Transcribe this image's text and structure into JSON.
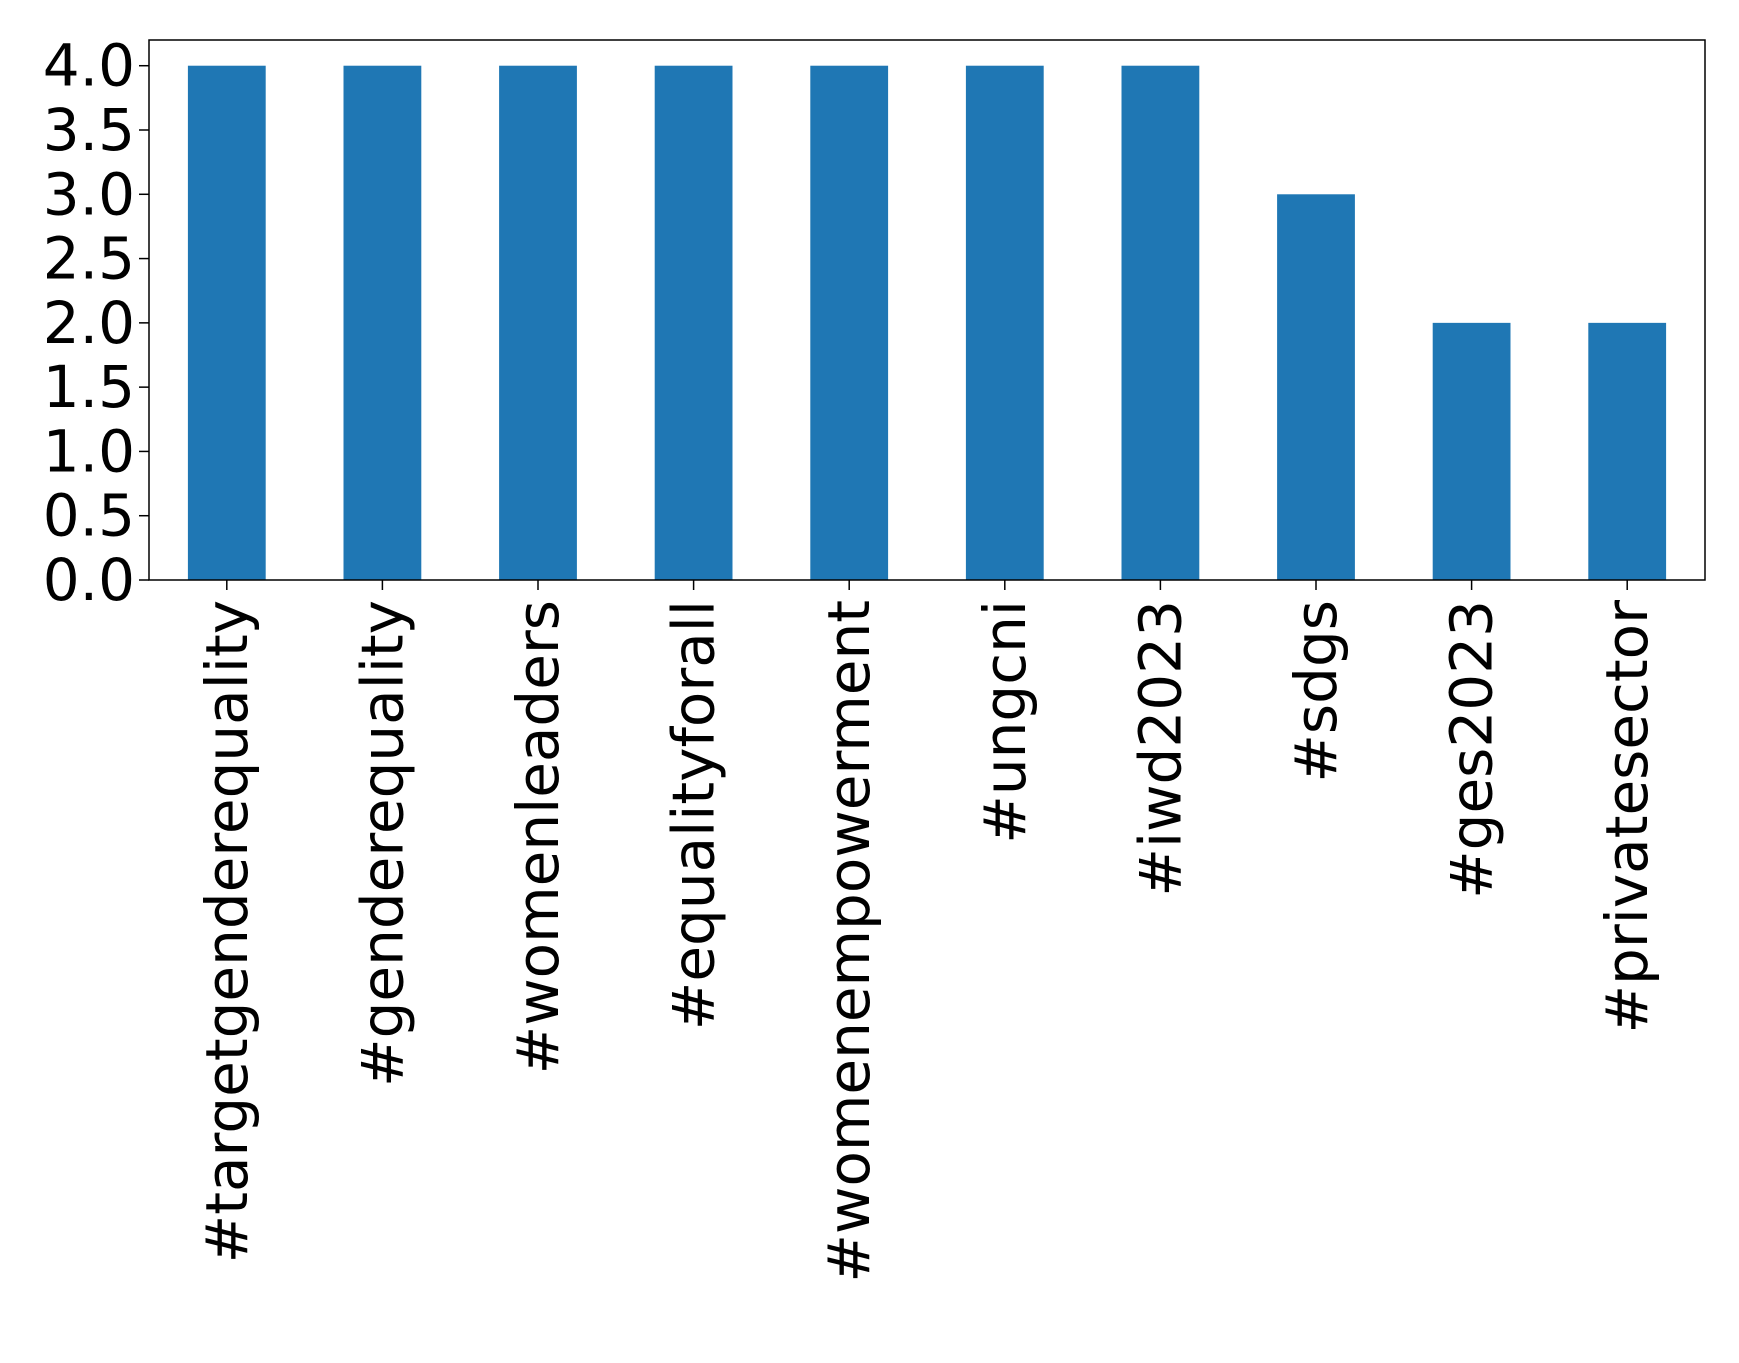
{
  "chart_data": {
    "type": "bar",
    "title": "",
    "xlabel": "",
    "ylabel": "",
    "categories": [
      "#targetgenderequality",
      "#genderequality",
      "#womenleaders",
      "#equalityforall",
      "#womenempowerment",
      "#ungcni",
      "#iwd2023",
      "#sdgs",
      "#ges2023",
      "#privatesector"
    ],
    "values": [
      4,
      4,
      4,
      4,
      4,
      4,
      4,
      3,
      2,
      2
    ],
    "ylim": [
      0,
      4.2
    ],
    "yticks": [
      "0.0",
      "0.5",
      "1.0",
      "1.5",
      "2.0",
      "2.5",
      "3.0",
      "3.5",
      "4.0"
    ],
    "bar_color": "#1f77b4",
    "grid": false,
    "legend": "none"
  }
}
